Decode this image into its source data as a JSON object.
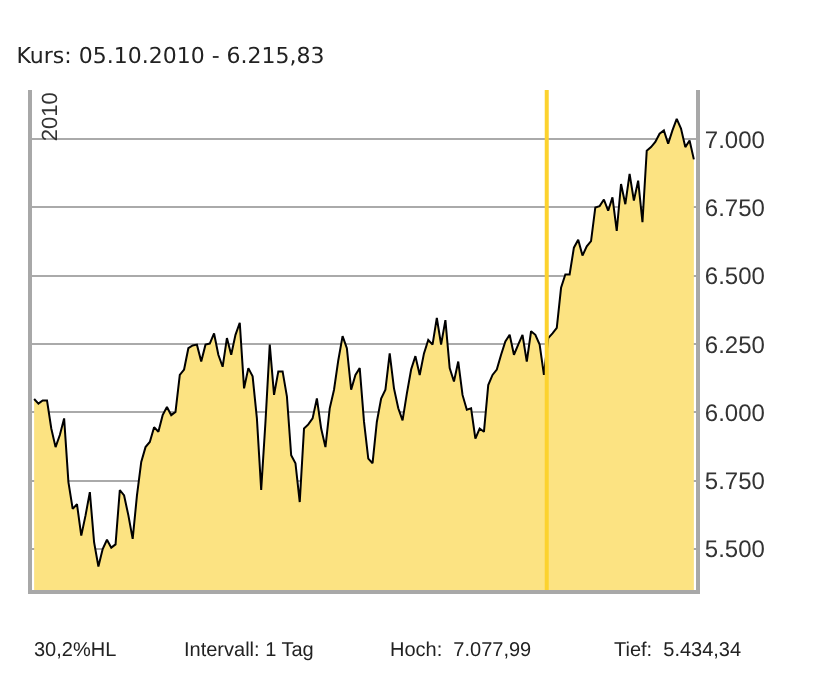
{
  "chart_data": {
    "type": "area",
    "title": "Kurs: 05.10.2010 - 6.215,83",
    "annotations": [
      "2010",
      "30,2%HL",
      "Intervall: 1 Tag",
      "Hoch:  7.077,99",
      "Tief:  5.434,34"
    ],
    "categories": [
      null,
      null,
      null,
      null,
      null,
      null,
      null,
      null,
      null,
      null,
      null,
      null,
      null,
      null,
      null,
      null,
      null,
      null,
      null,
      null,
      null,
      null,
      null,
      null,
      null,
      null,
      null,
      null,
      null,
      null,
      null,
      null,
      null,
      null,
      null,
      null,
      null,
      null,
      null,
      null,
      null,
      null,
      null,
      null,
      null,
      null,
      null,
      null,
      null,
      null,
      null,
      null,
      null,
      null,
      null,
      null,
      null,
      null,
      null,
      null,
      null,
      null,
      null,
      null,
      null,
      null,
      null,
      null,
      null,
      null,
      null,
      null,
      null,
      null,
      null,
      null,
      null,
      null,
      null,
      null,
      null,
      null,
      null,
      null,
      null,
      null,
      null,
      null,
      null,
      null,
      null,
      null,
      null,
      null,
      null,
      null,
      null,
      null,
      null,
      null,
      null,
      null,
      null,
      null,
      null,
      null,
      null,
      null,
      null,
      null,
      null,
      null,
      null,
      null,
      null,
      null,
      null,
      null,
      null,
      null,
      null,
      null,
      null,
      null,
      null,
      null,
      null,
      null,
      null,
      null,
      null,
      null,
      null,
      null,
      null,
      null,
      null,
      null,
      null,
      null,
      null,
      null,
      null,
      null,
      null,
      null,
      null,
      null,
      null,
      null,
      null,
      null,
      null,
      null,
      null
    ],
    "series": [
      {
        "color": "#fce382",
        "values": [
          6049,
          6032,
          6044,
          6044,
          5941,
          5873,
          5917,
          5978,
          5745,
          5647,
          5664,
          5549,
          5623,
          5708,
          5524,
          5436,
          5500,
          5534,
          5505,
          5517,
          5716,
          5696,
          5623,
          5537,
          5696,
          5819,
          5873,
          5892,
          5946,
          5929,
          5990,
          6020,
          5990,
          6002,
          6137,
          6157,
          6235,
          6245,
          6248,
          6186,
          6248,
          6252,
          6289,
          6211,
          6167,
          6272,
          6211,
          6284,
          6328,
          6088,
          6162,
          6132,
          5978,
          5716,
          5966,
          6248,
          6064,
          6150,
          6150,
          6059,
          5843,
          5814,
          5672,
          5941,
          5956,
          5978,
          6051,
          5941,
          5873,
          6015,
          6083,
          6191,
          6279,
          6235,
          6083,
          6137,
          6162,
          5966,
          5831,
          5814,
          5966,
          6051,
          6083,
          6216,
          6088,
          6015,
          5971,
          6069,
          6157,
          6206,
          6137,
          6216,
          6265,
          6248,
          6346,
          6248,
          6338,
          6162,
          6113,
          6186,
          6064,
          6010,
          6015,
          5904,
          5941,
          5929,
          6100,
          6137,
          6157,
          6211,
          6260,
          6284,
          6211,
          6248,
          6284,
          6186,
          6297,
          6284,
          6248,
          6137,
          6272,
          6289,
          6309,
          6456,
          6505,
          6505,
          6603,
          6632,
          6574,
          6608,
          6627,
          6750,
          6755,
          6779,
          6738,
          6787,
          6664,
          6836,
          6762,
          6873,
          6775,
          6848,
          6696,
          6958,
          6971,
          6990,
          7020,
          7032,
          6983,
          7032,
          7074,
          7039,
          6971,
          6995,
          6926
        ]
      }
    ],
    "ylim": [
      5350,
      7180
    ],
    "yticks": [
      {
        "value": 5500,
        "label": "5.500"
      },
      {
        "value": 5750,
        "label": "5.750"
      },
      {
        "value": 6000,
        "label": "6.000"
      },
      {
        "value": 6250,
        "label": "6.250"
      },
      {
        "value": 6500,
        "label": "6.500"
      },
      {
        "value": 6750,
        "label": "6.750"
      },
      {
        "value": 7000,
        "label": "7.000"
      }
    ],
    "grid": "y",
    "marker": "none",
    "line_style": "solid",
    "tick_labels": "y"
  }
}
